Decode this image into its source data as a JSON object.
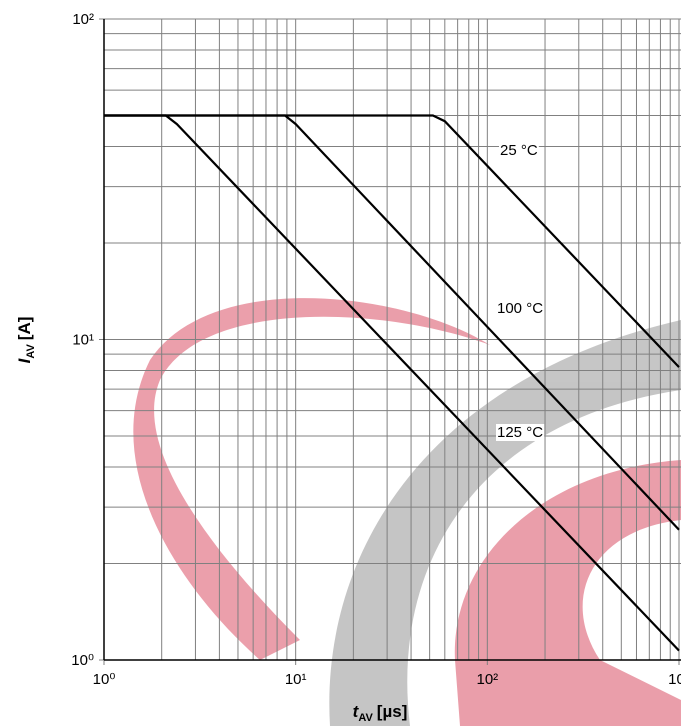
{
  "chart_data": {
    "type": "line",
    "xlabel": {
      "symbol": "t",
      "subscript": "AV",
      "unit": "[µs]"
    },
    "ylabel": {
      "symbol": "I",
      "subscript": "AV",
      "unit": "[A]"
    },
    "xscale": "log",
    "yscale": "log",
    "xlim": [
      1,
      1000
    ],
    "ylim": [
      1,
      100
    ],
    "xticks": [
      {
        "value": 1,
        "label": "10⁰"
      },
      {
        "value": 10,
        "label": "10¹"
      },
      {
        "value": 100,
        "label": "10²"
      },
      {
        "value": 1000,
        "label": "10³"
      }
    ],
    "yticks": [
      {
        "value": 1,
        "label": "10⁰"
      },
      {
        "value": 10,
        "label": "10¹"
      },
      {
        "value": 100,
        "label": "10²"
      }
    ],
    "x_minor_ticks": [
      2,
      3,
      4,
      5,
      6,
      7,
      8,
      9,
      20,
      30,
      40,
      50,
      60,
      70,
      80,
      90,
      200,
      300,
      400,
      500,
      600,
      700,
      800,
      900
    ],
    "y_minor_ticks": [
      2,
      3,
      4,
      5,
      6,
      7,
      8,
      9,
      20,
      30,
      40,
      50,
      60,
      70,
      80,
      90
    ],
    "grid": true,
    "series": [
      {
        "name": "25 °C",
        "color": "#000000",
        "x": [
          1,
          52,
          60,
          1000
        ],
        "values": [
          50,
          50,
          48,
          8.2
        ]
      },
      {
        "name": "100 °C",
        "color": "#000000",
        "x": [
          1,
          8.8,
          10,
          1000
        ],
        "values": [
          50,
          50,
          47,
          2.55
        ]
      },
      {
        "name": "125 °C",
        "color": "#000000",
        "x": [
          1,
          2.1,
          2.4,
          1000
        ],
        "values": [
          50,
          50,
          47,
          1.07
        ]
      }
    ]
  }
}
